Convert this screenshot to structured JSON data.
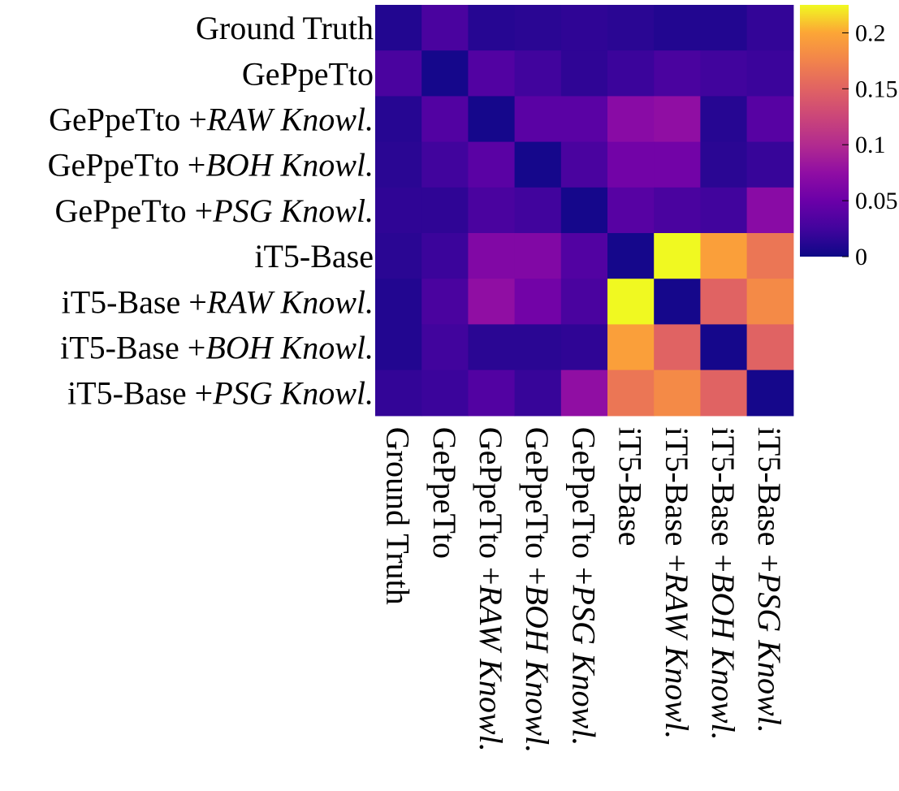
{
  "chart_data": {
    "type": "heatmap",
    "title": "",
    "xlabel": "",
    "ylabel": "",
    "labels": [
      {
        "base": "Ground Truth",
        "sep": "",
        "italic": ""
      },
      {
        "base": "GePpeTto",
        "sep": "",
        "italic": ""
      },
      {
        "base": "GePpeTto",
        "sep": " +",
        "italic": "RAW Knowl."
      },
      {
        "base": "GePpeTto",
        "sep": " +",
        "italic": "BOH Knowl."
      },
      {
        "base": "GePpeTto",
        "sep": " +",
        "italic": "PSG Knowl."
      },
      {
        "base": "iT5-Base",
        "sep": "",
        "italic": ""
      },
      {
        "base": "iT5-Base",
        "sep": " +",
        "italic": "RAW Knowl."
      },
      {
        "base": "iT5-Base",
        "sep": " +",
        "italic": "BOH Knowl."
      },
      {
        "base": "iT5-Base",
        "sep": " +",
        "italic": "PSG Knowl."
      }
    ],
    "matrix": [
      [
        0.01,
        0.03,
        0.012,
        0.014,
        0.016,
        0.014,
        0.01,
        0.01,
        0.018
      ],
      [
        0.03,
        0.004,
        0.035,
        0.025,
        0.016,
        0.022,
        0.03,
        0.025,
        0.022
      ],
      [
        0.012,
        0.035,
        0.004,
        0.04,
        0.04,
        0.07,
        0.075,
        0.012,
        0.038
      ],
      [
        0.014,
        0.025,
        0.04,
        0.004,
        0.03,
        0.055,
        0.055,
        0.014,
        0.02
      ],
      [
        0.016,
        0.016,
        0.03,
        0.025,
        0.004,
        0.038,
        0.03,
        0.025,
        0.07
      ],
      [
        0.014,
        0.022,
        0.065,
        0.065,
        0.035,
        0.004,
        0.225,
        0.195,
        0.165
      ],
      [
        0.01,
        0.03,
        0.075,
        0.055,
        0.03,
        0.225,
        0.004,
        0.15,
        0.18
      ],
      [
        0.01,
        0.025,
        0.014,
        0.014,
        0.016,
        0.195,
        0.15,
        0.004,
        0.15
      ],
      [
        0.018,
        0.022,
        0.035,
        0.02,
        0.075,
        0.165,
        0.18,
        0.15,
        0.004
      ]
    ],
    "colormap": "plasma",
    "range": [
      0,
      0.225
    ],
    "colorbar": {
      "ticks": [
        0,
        0.05,
        0.1,
        0.15,
        0.2
      ],
      "tick_labels": [
        "0",
        "0.05",
        "0.1",
        "0.15",
        "0.2"
      ]
    }
  }
}
